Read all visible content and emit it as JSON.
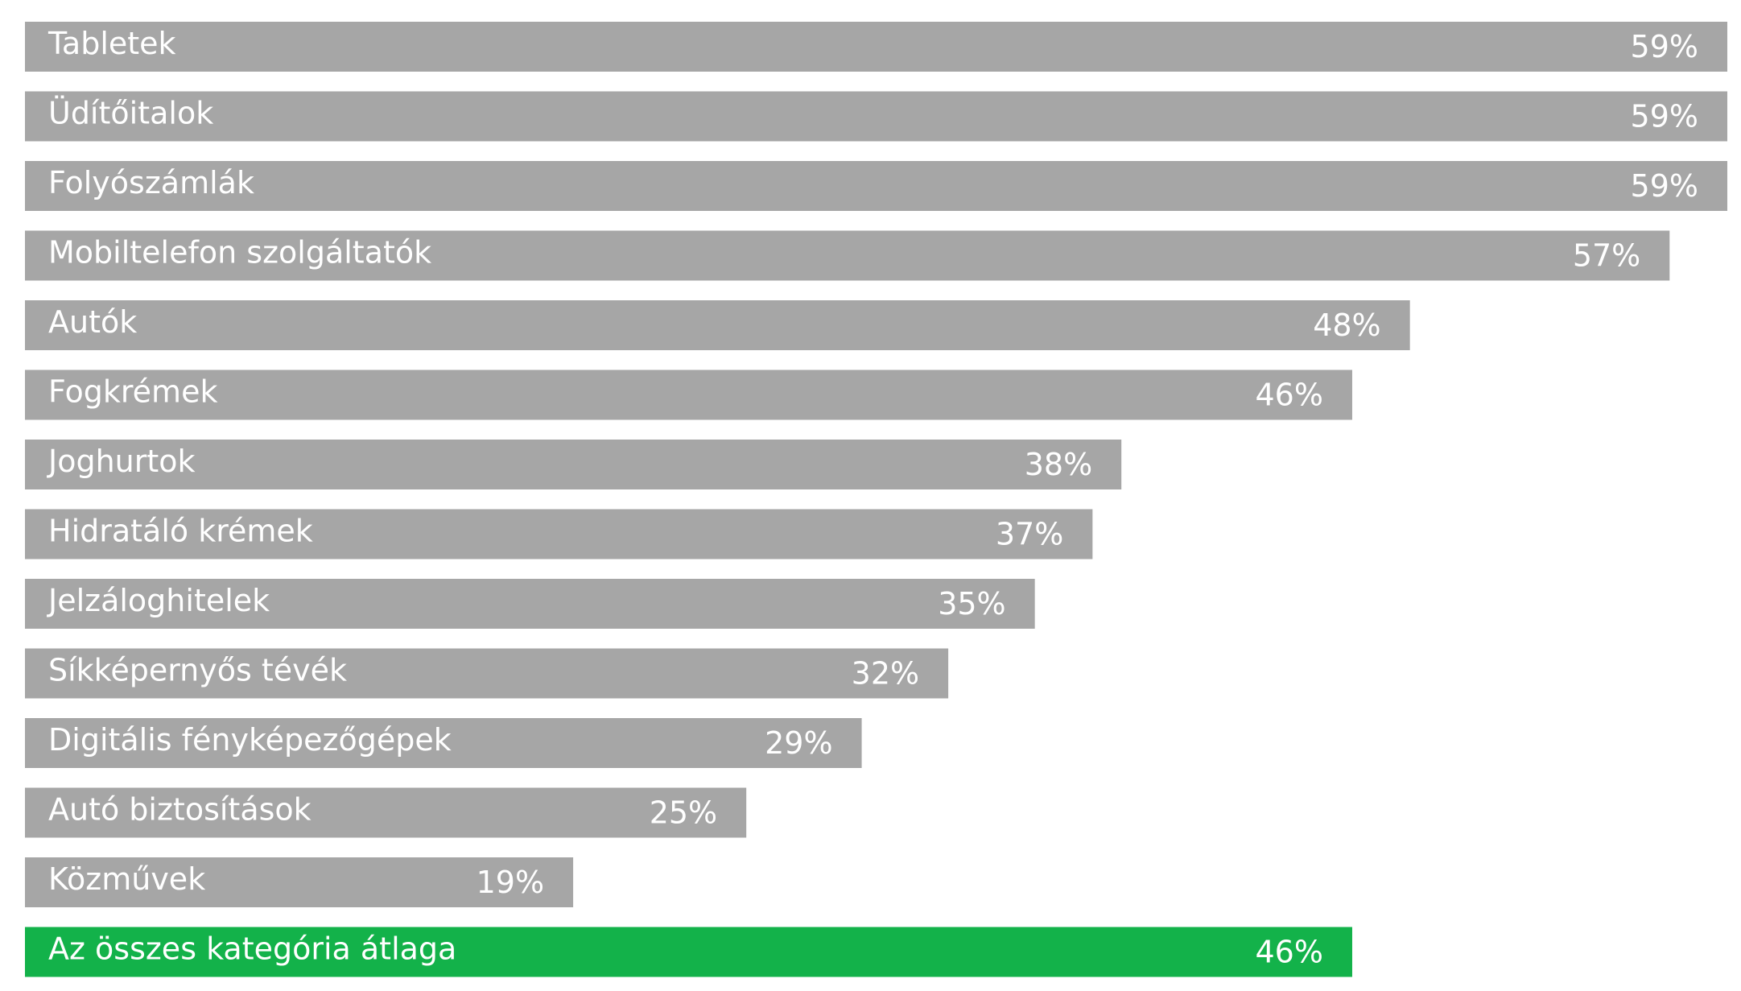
{
  "chart_data": {
    "type": "bar",
    "orientation": "horizontal",
    "categories": [
      "Tabletek",
      "Üdítőitalok",
      "Folyószámlák",
      "Mobiltelefon szolgáltatók",
      "Autók",
      "Fogkrémek",
      "Joghurtok",
      "Hidratáló krémek",
      "Jelzáloghitelek",
      "Síkképernyős tévék",
      "Digitális fényképezőgépek",
      "Autó biztosítások",
      "Közművek",
      "Az összes kategória átlaga"
    ],
    "values": [
      59,
      59,
      59,
      57,
      48,
      46,
      38,
      37,
      35,
      32,
      29,
      25,
      19,
      46
    ],
    "value_labels": [
      "59%",
      "59%",
      "59%",
      "57%",
      "48%",
      "46%",
      "38%",
      "37%",
      "35%",
      "32%",
      "29%",
      "25%",
      "19%",
      "46%"
    ],
    "highlight_index": 13,
    "title": "",
    "xlabel": "",
    "ylabel": "",
    "xlim": [
      0,
      59
    ],
    "grid": false,
    "legend": "none",
    "colors": {
      "bar": "#a6a6a6",
      "highlight": "#13b24a",
      "text": "#ffffff"
    }
  }
}
